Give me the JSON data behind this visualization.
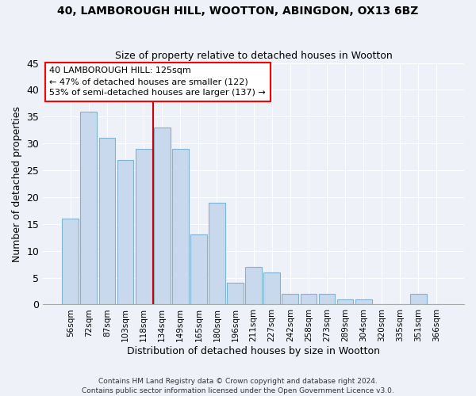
{
  "title1": "40, LAMBOROUGH HILL, WOOTTON, ABINGDON, OX13 6BZ",
  "title2": "Size of property relative to detached houses in Wootton",
  "xlabel": "Distribution of detached houses by size in Wootton",
  "ylabel": "Number of detached properties",
  "categories": [
    "56sqm",
    "72sqm",
    "87sqm",
    "103sqm",
    "118sqm",
    "134sqm",
    "149sqm",
    "165sqm",
    "180sqm",
    "196sqm",
    "211sqm",
    "227sqm",
    "242sqm",
    "258sqm",
    "273sqm",
    "289sqm",
    "304sqm",
    "320sqm",
    "335sqm",
    "351sqm",
    "366sqm"
  ],
  "values": [
    16,
    36,
    31,
    27,
    29,
    33,
    29,
    13,
    19,
    4,
    7,
    6,
    2,
    2,
    2,
    1,
    1,
    0,
    0,
    2,
    0
  ],
  "bar_color": "#c9d9ed",
  "bar_edge_color": "#7fb3d3",
  "vline_x": 4.5,
  "vline_color": "#cc0000",
  "annotation_line1": "40 LAMBOROUGH HILL: 125sqm",
  "annotation_line2": "← 47% of detached houses are smaller (122)",
  "annotation_line3": "53% of semi-detached houses are larger (137) →",
  "ylim": [
    0,
    45
  ],
  "yticks": [
    0,
    5,
    10,
    15,
    20,
    25,
    30,
    35,
    40,
    45
  ],
  "footer1": "Contains HM Land Registry data © Crown copyright and database right 2024.",
  "footer2": "Contains public sector information licensed under the Open Government Licence v3.0.",
  "bg_color": "#eef2f8",
  "grid_color": "#ffffff"
}
